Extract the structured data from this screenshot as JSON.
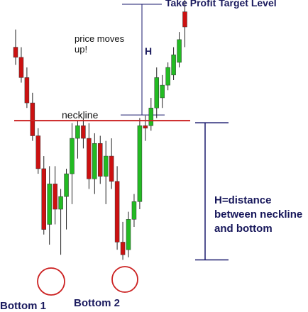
{
  "labels": {
    "take_profit": "Take Profit Target Level",
    "price_moves": "price moves\nup!",
    "h": "H",
    "neckline": "neckline",
    "h_definition": "H=distance\nbetween neckline\nand bottom",
    "bottom1": "Bottom 1",
    "bottom2": "Bottom 2"
  },
  "colors": {
    "bull": "#22bb22",
    "bear": "#cc1111",
    "wick": "#222222",
    "neckline": "#cc2222",
    "guide": "#1a1a6e",
    "circle": "#cc2222"
  },
  "chart_data": {
    "type": "candlestick",
    "title": "",
    "ylim": [
      0,
      100
    ],
    "neckline": 63,
    "bottom": 8,
    "target": 118,
    "candles": [
      {
        "o": 92,
        "h": 99,
        "l": 85,
        "c": 88,
        "dir": "down"
      },
      {
        "o": 88,
        "h": 92,
        "l": 78,
        "c": 80,
        "dir": "down"
      },
      {
        "o": 80,
        "h": 84,
        "l": 68,
        "c": 70,
        "dir": "down"
      },
      {
        "o": 70,
        "h": 74,
        "l": 55,
        "c": 57,
        "dir": "down"
      },
      {
        "o": 57,
        "h": 60,
        "l": 42,
        "c": 44,
        "dir": "down"
      },
      {
        "o": 44,
        "h": 49,
        "l": 18,
        "c": 20,
        "dir": "down"
      },
      {
        "o": 22,
        "h": 45,
        "l": 14,
        "c": 38,
        "dir": "up"
      },
      {
        "o": 38,
        "h": 45,
        "l": 22,
        "c": 28,
        "dir": "down"
      },
      {
        "o": 28,
        "h": 36,
        "l": 10,
        "c": 33,
        "dir": "up"
      },
      {
        "o": 33,
        "h": 44,
        "l": 20,
        "c": 42,
        "dir": "up"
      },
      {
        "o": 42,
        "h": 62,
        "l": 30,
        "c": 56,
        "dir": "up"
      },
      {
        "o": 56,
        "h": 63,
        "l": 48,
        "c": 61,
        "dir": "up"
      },
      {
        "o": 61,
        "h": 64,
        "l": 52,
        "c": 56,
        "dir": "down"
      },
      {
        "o": 56,
        "h": 62,
        "l": 36,
        "c": 40,
        "dir": "down"
      },
      {
        "o": 40,
        "h": 58,
        "l": 34,
        "c": 54,
        "dir": "up"
      },
      {
        "o": 54,
        "h": 57,
        "l": 38,
        "c": 41,
        "dir": "down"
      },
      {
        "o": 41,
        "h": 55,
        "l": 30,
        "c": 49,
        "dir": "up"
      },
      {
        "o": 49,
        "h": 56,
        "l": 36,
        "c": 39,
        "dir": "down"
      },
      {
        "o": 39,
        "h": 45,
        "l": 12,
        "c": 15,
        "dir": "down"
      },
      {
        "o": 15,
        "h": 23,
        "l": 8,
        "c": 10,
        "dir": "down"
      },
      {
        "o": 12,
        "h": 27,
        "l": 9,
        "c": 24,
        "dir": "up"
      },
      {
        "o": 24,
        "h": 34,
        "l": 21,
        "c": 31,
        "dir": "up"
      },
      {
        "o": 31,
        "h": 64,
        "l": 28,
        "c": 61,
        "dir": "up"
      },
      {
        "o": 61,
        "h": 65,
        "l": 55,
        "c": 60,
        "dir": "down"
      },
      {
        "o": 61,
        "h": 72,
        "l": 59,
        "c": 68,
        "dir": "up"
      },
      {
        "o": 68,
        "h": 84,
        "l": 64,
        "c": 80,
        "dir": "up"
      },
      {
        "o": 72,
        "h": 81,
        "l": 68,
        "c": 77,
        "dir": "up"
      },
      {
        "o": 77,
        "h": 86,
        "l": 75,
        "c": 84,
        "dir": "up"
      },
      {
        "o": 81,
        "h": 92,
        "l": 79,
        "c": 89,
        "dir": "up"
      },
      {
        "o": 86,
        "h": 98,
        "l": 84,
        "c": 95,
        "dir": "up"
      },
      {
        "o": 100,
        "h": 118,
        "l": 92,
        "c": 106,
        "dir": "down"
      }
    ]
  }
}
